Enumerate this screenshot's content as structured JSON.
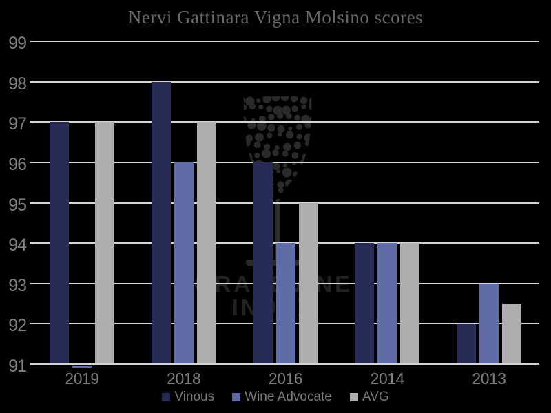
{
  "title": "Nervi Gattinara Vigna Molsino scores",
  "watermark": {
    "icon": "wine-glass-dots",
    "line1": "GRAPEVINE",
    "line2": "INDEX"
  },
  "axes": {
    "y_ticks": [
      "99",
      "98",
      "97",
      "96",
      "95",
      "94",
      "93",
      "92",
      "91"
    ]
  },
  "chart_data": {
    "type": "bar",
    "title": "Nervi Gattinara Vigna Molsino scores",
    "categories": [
      "2019",
      "2018",
      "2016",
      "2014",
      "2013"
    ],
    "series": [
      {
        "name": "Vinous",
        "color": "#262c55",
        "values": [
          97,
          98,
          96,
          94,
          92
        ]
      },
      {
        "name": "Wine Advocate",
        "color": "#5f6ca6",
        "values": [
          91,
          96,
          94,
          94,
          93
        ]
      },
      {
        "name": "AVG",
        "color": "#aeaeae",
        "values": [
          97,
          97,
          95,
          94,
          92.5
        ]
      }
    ],
    "xlabel": "",
    "ylabel": "",
    "ylim": [
      91,
      99
    ],
    "ytick_step": 1,
    "grid": true,
    "legend_position": "bottom",
    "background": "#000000",
    "gridline_color": "#d5d5d5",
    "tick_label_color": "#7f7f7f",
    "title_color": "#696969"
  }
}
